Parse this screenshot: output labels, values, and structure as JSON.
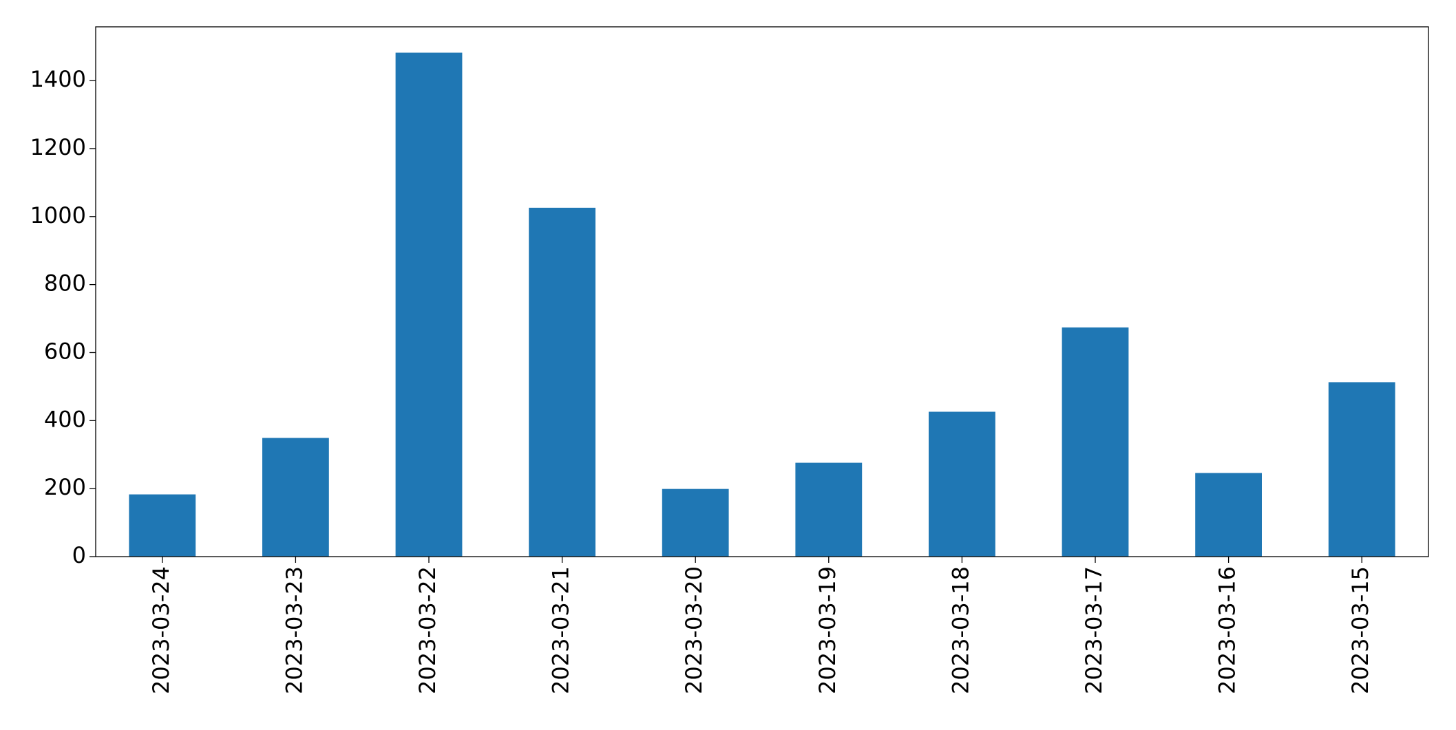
{
  "chart_data": {
    "type": "bar",
    "categories": [
      "2023-03-24",
      "2023-03-23",
      "2023-03-22",
      "2023-03-21",
      "2023-03-20",
      "2023-03-19",
      "2023-03-18",
      "2023-03-17",
      "2023-03-16",
      "2023-03-15"
    ],
    "values": [
      183,
      349,
      1482,
      1026,
      199,
      276,
      426,
      674,
      246,
      513
    ],
    "color": "#1f77b4",
    "ylim": [
      0,
      1558
    ],
    "yticks": [
      0,
      200,
      400,
      600,
      800,
      1000,
      1200,
      1400
    ],
    "grid": false
  }
}
